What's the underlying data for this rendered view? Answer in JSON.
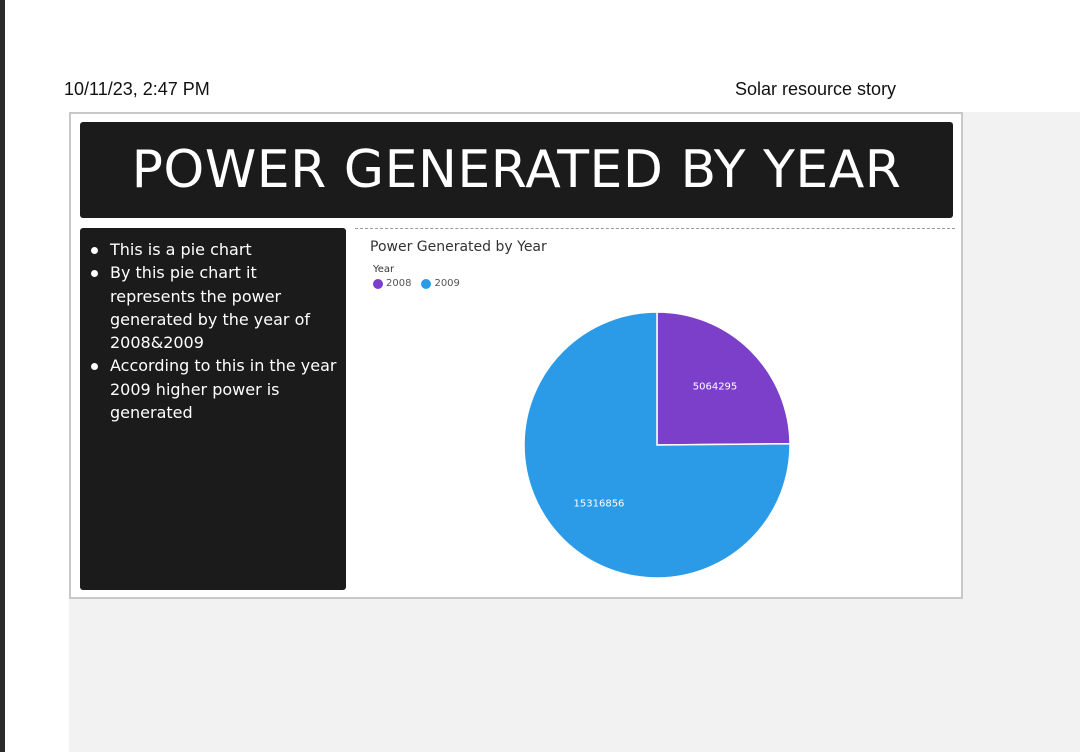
{
  "header": {
    "datetime": "10/11/23, 2:47 PM",
    "story_title": "Solar resource story"
  },
  "banner": {
    "title": "POWER GENERATED BY YEAR"
  },
  "notes": {
    "bullets": [
      "This is a pie chart",
      "By this pie chart it represents the power generated by the year of 2008&2009",
      "According to this in the year 2009  higher power is generated"
    ]
  },
  "chart_data": {
    "type": "pie",
    "title": "Power Generated by Year",
    "legend_title": "Year",
    "legend_position": "top-left",
    "categories": [
      "2008",
      "2009"
    ],
    "values": [
      5064295,
      15316856
    ],
    "value_labels": [
      "5064295",
      "15316856"
    ],
    "colors": [
      "#7b3fc9",
      "#2b9be8"
    ]
  }
}
